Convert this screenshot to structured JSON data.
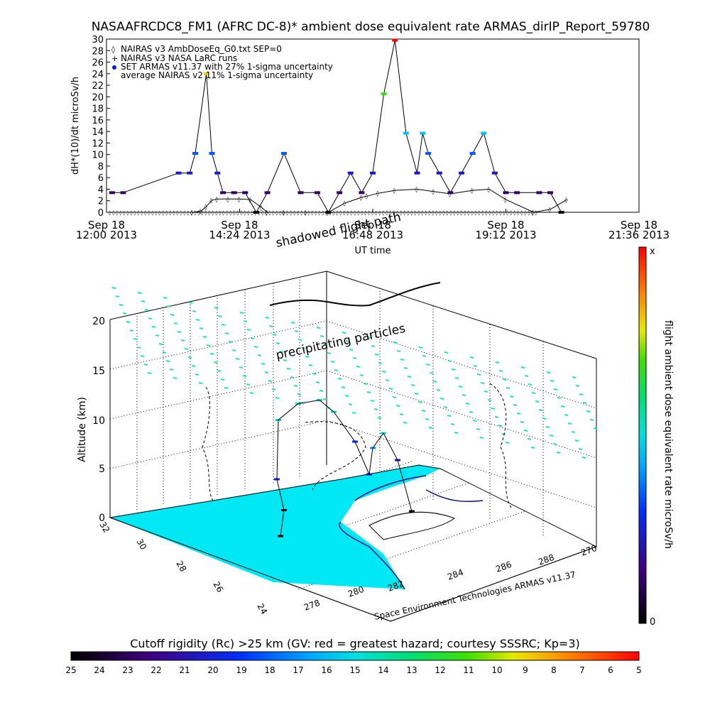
{
  "title": "NASAAFRCDC8_FM1 (AFRC DC-8)* ambient dose equivalent rate ARMAS_dirIP_Report_59780",
  "time_series": {
    "ylabel": "dH*(10)/dt microSv/h",
    "xlabel": "UT time",
    "ylim": [
      0,
      30
    ],
    "yticks": [
      0,
      2,
      4,
      6,
      8,
      10,
      12,
      14,
      16,
      18,
      20,
      22,
      24,
      26,
      28,
      30
    ],
    "xticks": [
      {
        "line1": "Sep 18",
        "line2": "12:00 2013"
      },
      {
        "line1": "Sep 18",
        "line2": "14:24 2013"
      },
      {
        "line1": "Sep 18",
        "line2": "16:48 2013"
      },
      {
        "line1": "Sep 18",
        "line2": "19:12 2013"
      },
      {
        "line1": "Sep 18",
        "line2": "21:36 2013"
      }
    ],
    "legend": [
      "NAIRAS v3 AmbDoseEq_G0.txt SEP=0",
      "NAIRAS v3 NASA LaRC runs",
      "SET ARMAS v11.37 with 27% 1-sigma uncertainty",
      "average NAIRAS v2 11% 1-sigma uncertainty"
    ]
  },
  "chart_data": [
    {
      "type": "scatter",
      "title": "NASAAFRCDC8_FM1 (AFRC DC-8)* ambient dose equivalent rate ARMAS_dirIP_Report_59780",
      "xlabel": "UT time",
      "ylabel": "dH*(10)/dt microSv/h",
      "xlim": [
        0,
        9.6
      ],
      "ylim": [
        0,
        30
      ],
      "grid": false,
      "legend_placement": "top-left",
      "series": [
        {
          "name": "NAIRAS v3 AmbDoseEq_G0.txt SEP=0",
          "x": [
            1.55,
            1.7,
            1.8,
            1.9,
            2.0,
            2.2,
            2.4,
            2.6,
            2.8,
            2.9,
            3.2,
            3.6,
            4.0,
            4.3,
            4.6,
            4.7,
            4.9,
            5.2,
            5.6,
            5.9,
            6.2,
            6.6,
            6.9,
            7.2,
            7.7,
            8.0,
            8.3
          ],
          "y": [
            0,
            0.2,
            1.0,
            2.1,
            2.3,
            2.3,
            2.3,
            2.2,
            0.8,
            0,
            0,
            0,
            0,
            1.6,
            2.6,
            2.8,
            3.3,
            3.8,
            4.0,
            3.6,
            3.2,
            3.8,
            4.0,
            2.2,
            0,
            0.5,
            2.2
          ]
        },
        {
          "name": "SET ARMAS v11.37 with 27% 1-sigma uncertainty",
          "x": [
            0.1,
            0.3,
            1.3,
            1.5,
            1.6,
            1.8,
            1.9,
            2.0,
            2.1,
            2.3,
            2.5,
            2.7,
            2.9,
            3.2,
            3.5,
            3.8,
            4.0,
            4.2,
            4.4,
            4.6,
            4.8,
            5.0,
            5.2,
            5.4,
            5.6,
            5.7,
            5.8,
            6.0,
            6.2,
            6.4,
            6.6,
            6.8,
            7.0,
            7.2,
            7.4,
            7.8,
            8.0,
            8.2
          ],
          "y": [
            3.4,
            3.4,
            6.8,
            6.8,
            10.2,
            24,
            10.2,
            6.8,
            3.4,
            3.4,
            3.4,
            0,
            3.4,
            10.2,
            3.4,
            3.4,
            0,
            3.4,
            6.8,
            3.4,
            6.8,
            20.5,
            30,
            13.7,
            6.8,
            13.7,
            10.2,
            6.8,
            3.4,
            6.8,
            10.2,
            13.7,
            6.8,
            3.4,
            3.4,
            3.4,
            3.4,
            0
          ]
        }
      ]
    },
    {
      "type": "scatter",
      "title": "",
      "zlabel": "Altitude (km)",
      "zlim": [
        0,
        22
      ],
      "zticks": [
        0,
        5,
        10,
        15,
        20
      ],
      "lat_ticks": [
        "32",
        "30",
        "28",
        "26",
        "24"
      ],
      "lon_ticks": [
        "278",
        "280",
        "282",
        "284",
        "286",
        "288",
        "270"
      ],
      "annotations": [
        "shadowed flight path",
        "precipitating particles",
        "Space Environment Technologies ARMAS v11.37"
      ],
      "series": [
        {
          "name": "flight track altitude (km)",
          "x": [
            0,
            1,
            2,
            3,
            4,
            5,
            6,
            7,
            8,
            9,
            10,
            11,
            12
          ],
          "y": [
            0,
            0.5,
            5,
            9.5,
            10.5,
            10.5,
            10,
            6,
            4,
            8,
            10,
            4,
            0
          ]
        }
      ]
    }
  ],
  "colorbar_right": {
    "label": "flight ambient dose equivalent rate microSv/h",
    "top": "x",
    "bottom": "0"
  },
  "colorbar_bottom": {
    "title": "Cutoff rigidity (Rc) >25 km (GV: red = greatest hazard; courtesy SSSRC; Kp=3)",
    "ticks": [
      "25",
      "24",
      "23",
      "22",
      "21",
      "20",
      "19",
      "18",
      "17",
      "16",
      "15",
      "14",
      "13",
      "12",
      "11",
      "10",
      "9",
      "8",
      "7",
      "6",
      "5"
    ]
  },
  "colors": {
    "ocean": "#00e8f4",
    "particles": "#20e8a0",
    "nairas_g0": "#111111"
  }
}
